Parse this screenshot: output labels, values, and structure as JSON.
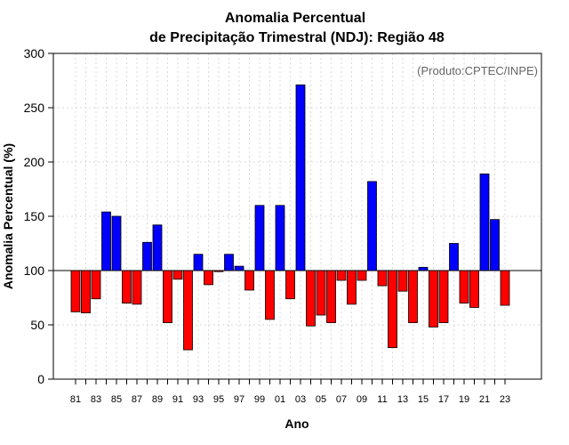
{
  "chart_data": {
    "type": "bar",
    "title": "Anomalia Percentual",
    "subtitle": "de Precipitação Trimestral (NDJ): Região 48",
    "xlabel": "Ano",
    "ylabel": "Anomalia Percentual (%)",
    "credit": "(Produto:CPTEC/INPE)",
    "ylim": [
      0,
      300
    ],
    "yticks": [
      "0",
      "50",
      "100",
      "150",
      "200",
      "250",
      "300"
    ],
    "baseline": 100,
    "grid": true,
    "categories": [
      "81",
      "82",
      "83",
      "84",
      "85",
      "86",
      "87",
      "88",
      "89",
      "90",
      "91",
      "92",
      "93",
      "94",
      "95",
      "96",
      "97",
      "98",
      "99",
      "00",
      "01",
      "02",
      "03",
      "04",
      "05",
      "06",
      "07",
      "08",
      "09",
      "10",
      "11",
      "12",
      "13",
      "14",
      "15",
      "16",
      "17",
      "18",
      "19",
      "20",
      "21",
      "22",
      "23"
    ],
    "xtick_labels": [
      "81",
      "83",
      "85",
      "87",
      "89",
      "91",
      "93",
      "95",
      "97",
      "99",
      "01",
      "03",
      "05",
      "07",
      "09",
      "11",
      "13",
      "15",
      "17",
      "19",
      "21",
      "23"
    ],
    "values": [
      62,
      61,
      74,
      154,
      150,
      70,
      69,
      126,
      142,
      52,
      92,
      27,
      115,
      87,
      99,
      115,
      104,
      82,
      160,
      55,
      160,
      74,
      271,
      49,
      59,
      52,
      91,
      69,
      91,
      182,
      86,
      29,
      81,
      52,
      103,
      48,
      52,
      125,
      70,
      66,
      189,
      147,
      68
    ],
    "colors": {
      "above": "#0000ff",
      "below": "#ff0000",
      "outline": "#000000",
      "grid": "#d9d9d9"
    }
  }
}
